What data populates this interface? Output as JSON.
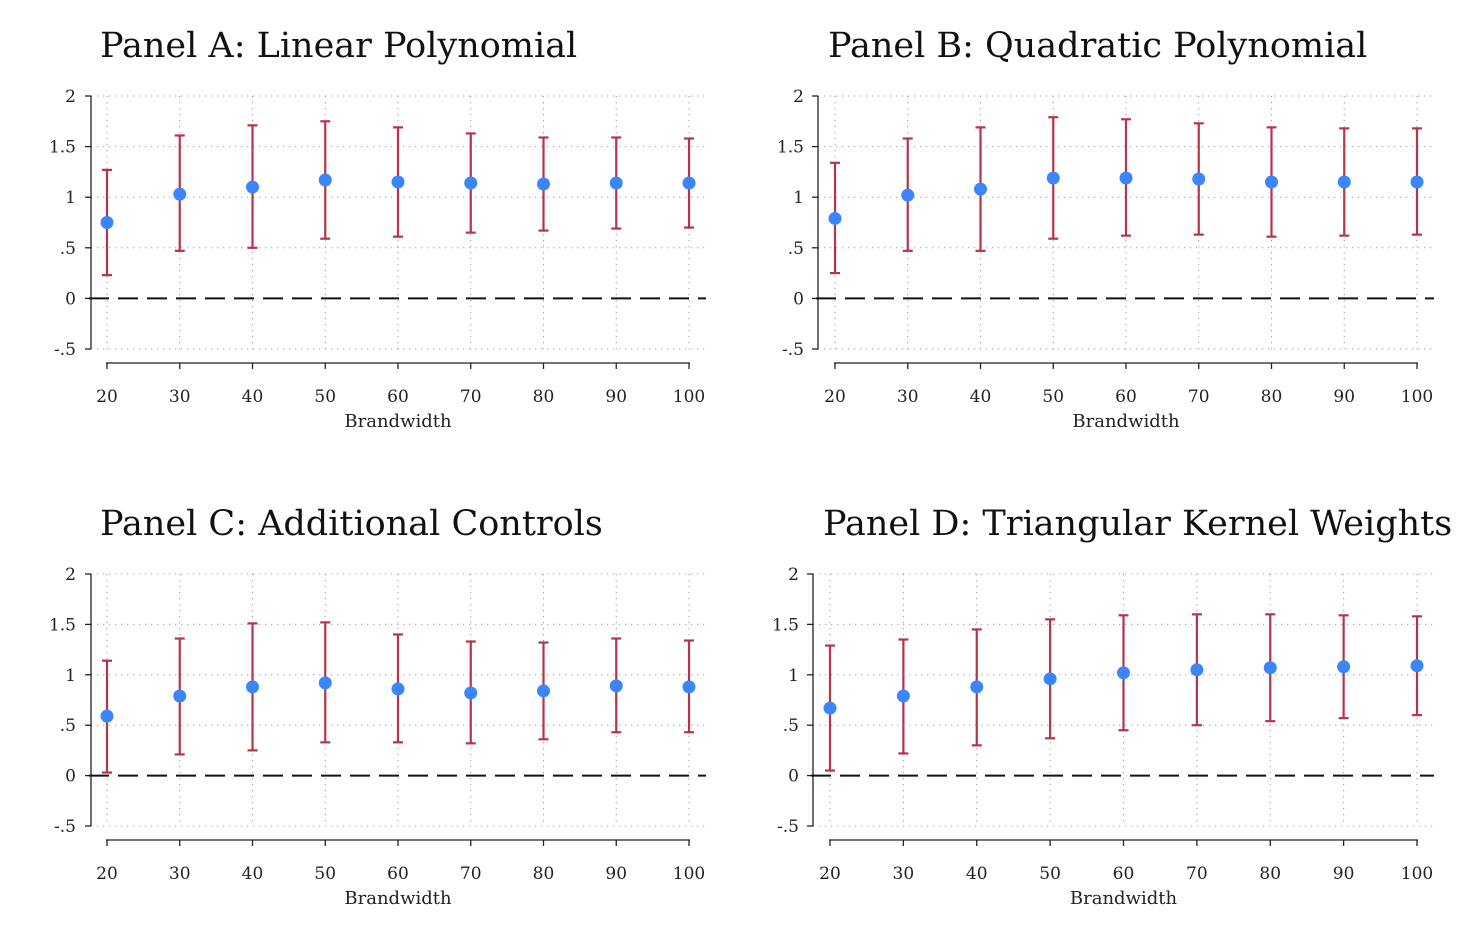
{
  "colors": {
    "point": "#3a86ff",
    "ci": "#b5344a",
    "axis": "#222222",
    "grid": "#9a9a9a",
    "zero_line": "#111111"
  },
  "chart_data": [
    {
      "type": "scatter",
      "title": "Panel A: Linear Polynomial",
      "xlabel": "Brandwidth",
      "ylabel": "",
      "x": [
        20,
        30,
        40,
        50,
        60,
        70,
        80,
        90,
        100
      ],
      "x_tick_labels": [
        "20",
        "30",
        "40",
        "50",
        "60",
        "70",
        "80",
        "90",
        "100"
      ],
      "y_ticks": [
        -0.5,
        0,
        0.5,
        1,
        1.5,
        2
      ],
      "y_tick_labels": [
        "-.5",
        "0",
        ".5",
        "1",
        "1.5",
        "2"
      ],
      "ylim": [
        -0.5,
        2
      ],
      "estimate": [
        0.75,
        1.03,
        1.1,
        1.17,
        1.15,
        1.14,
        1.13,
        1.14,
        1.14
      ],
      "ci_low": [
        0.23,
        0.47,
        0.5,
        0.59,
        0.61,
        0.65,
        0.67,
        0.69,
        0.7
      ],
      "ci_high": [
        1.27,
        1.61,
        1.71,
        1.75,
        1.69,
        1.63,
        1.59,
        1.59,
        1.58
      ],
      "reference_line": 0,
      "grid": true
    },
    {
      "type": "scatter",
      "title": "Panel B: Quadratic Polynomial",
      "xlabel": "Brandwidth",
      "ylabel": "",
      "x": [
        20,
        30,
        40,
        50,
        60,
        70,
        80,
        90,
        100
      ],
      "x_tick_labels": [
        "20",
        "30",
        "40",
        "50",
        "60",
        "70",
        "80",
        "90",
        "100"
      ],
      "y_ticks": [
        -0.5,
        0,
        0.5,
        1,
        1.5,
        2
      ],
      "y_tick_labels": [
        "-.5",
        "0",
        ".5",
        "1",
        "1.5",
        "2"
      ],
      "ylim": [
        -0.5,
        2
      ],
      "estimate": [
        0.79,
        1.02,
        1.08,
        1.19,
        1.19,
        1.18,
        1.15,
        1.15,
        1.15
      ],
      "ci_low": [
        0.25,
        0.47,
        0.47,
        0.59,
        0.62,
        0.63,
        0.61,
        0.62,
        0.63
      ],
      "ci_high": [
        1.34,
        1.58,
        1.69,
        1.79,
        1.77,
        1.73,
        1.69,
        1.68,
        1.68
      ],
      "reference_line": 0,
      "grid": true
    },
    {
      "type": "scatter",
      "title": "Panel C: Additional Controls",
      "xlabel": "Brandwidth",
      "ylabel": "",
      "x": [
        20,
        30,
        40,
        50,
        60,
        70,
        80,
        90,
        100
      ],
      "x_tick_labels": [
        "20",
        "30",
        "40",
        "50",
        "60",
        "70",
        "80",
        "90",
        "100"
      ],
      "y_ticks": [
        -0.5,
        0,
        0.5,
        1,
        1.5,
        2
      ],
      "y_tick_labels": [
        "-.5",
        "0",
        ".5",
        "1",
        "1.5",
        "2"
      ],
      "ylim": [
        -0.5,
        2
      ],
      "estimate": [
        0.59,
        0.79,
        0.88,
        0.92,
        0.86,
        0.82,
        0.84,
        0.89,
        0.88
      ],
      "ci_low": [
        0.03,
        0.21,
        0.25,
        0.33,
        0.33,
        0.32,
        0.36,
        0.43,
        0.43
      ],
      "ci_high": [
        1.14,
        1.36,
        1.51,
        1.52,
        1.4,
        1.33,
        1.32,
        1.36,
        1.34
      ],
      "reference_line": 0,
      "grid": true
    },
    {
      "type": "scatter",
      "title": "Panel D: Triangular Kernel Weights",
      "xlabel": "Brandwidth",
      "ylabel": "",
      "x": [
        20,
        30,
        40,
        50,
        60,
        70,
        80,
        90,
        100
      ],
      "x_tick_labels": [
        "20",
        "30",
        "40",
        "50",
        "60",
        "70",
        "80",
        "90",
        "100"
      ],
      "y_ticks": [
        -0.5,
        0,
        0.5,
        1,
        1.5,
        2
      ],
      "y_tick_labels": [
        "-.5",
        "0",
        ".5",
        "1",
        "1.5",
        "2"
      ],
      "ylim": [
        -0.5,
        2
      ],
      "estimate": [
        0.67,
        0.79,
        0.88,
        0.96,
        1.02,
        1.05,
        1.07,
        1.08,
        1.09
      ],
      "ci_low": [
        0.05,
        0.22,
        0.3,
        0.37,
        0.45,
        0.5,
        0.54,
        0.57,
        0.6
      ],
      "ci_high": [
        1.29,
        1.35,
        1.45,
        1.55,
        1.59,
        1.6,
        1.6,
        1.59,
        1.58
      ],
      "reference_line": 0,
      "grid": true
    }
  ]
}
